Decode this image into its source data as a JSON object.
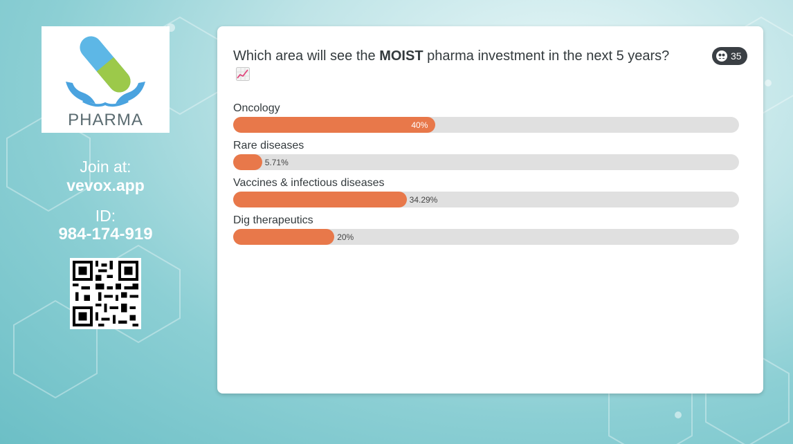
{
  "join": {
    "label": "Join at:",
    "url": "vevox.app"
  },
  "session": {
    "label": "ID:",
    "id": "984-174-919"
  },
  "logo": {
    "text": "PHARMA"
  },
  "poll": {
    "question_prefix": "Which area will see the ",
    "question_emphasis": "MOIST",
    "question_suffix": " pharma investment in the next 5 years?",
    "question_icon": "chart-increasing-icon",
    "responses": "35",
    "options": [
      {
        "label": "Oncology",
        "pct_text": "40%",
        "value": 40
      },
      {
        "label": "Rare diseases",
        "pct_text": "5.71%",
        "value": 5.71
      },
      {
        "label": "Vaccines & infectious diseases",
        "pct_text": "34.29%",
        "value": 34.29
      },
      {
        "label": "Dig therapeutics",
        "pct_text": "20%",
        "value": 20
      }
    ]
  },
  "colors": {
    "bar_fill": "#e8784a",
    "bar_track": "#e0e0e0",
    "badge": "#3a3f44"
  }
}
